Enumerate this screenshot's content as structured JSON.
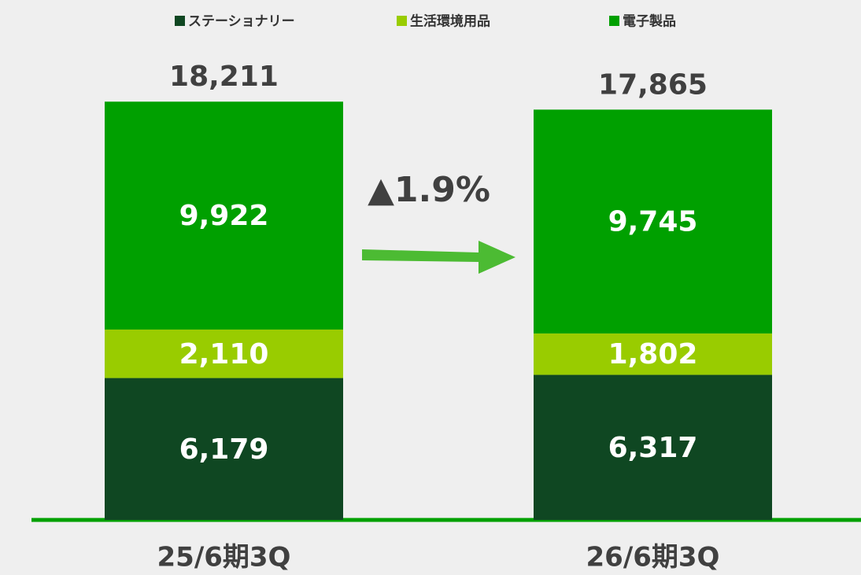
{
  "chart_data": {
    "type": "stacked_bar",
    "categories": [
      "25/6期3Q",
      "26/6期3Q"
    ],
    "series": [
      {
        "name": "ステーショナリー",
        "color": "#0f4722",
        "values": [
          6179,
          6317
        ],
        "value_labels": [
          "6,179",
          "6,317"
        ]
      },
      {
        "name": "生活環境用品",
        "color": "#99cc00",
        "values": [
          2110,
          1802
        ],
        "value_labels": [
          "2,110",
          "1,802"
        ]
      },
      {
        "name": "電子製品",
        "color": "#00a000",
        "values": [
          9922,
          9745
        ],
        "value_labels": [
          "9,922",
          "9,745"
        ]
      }
    ],
    "totals": [
      18211,
      17865
    ],
    "total_labels": [
      "18,211",
      "17,865"
    ],
    "annotation": "▲1.9%",
    "ylim": [
      0,
      20000
    ],
    "legend": "top"
  }
}
